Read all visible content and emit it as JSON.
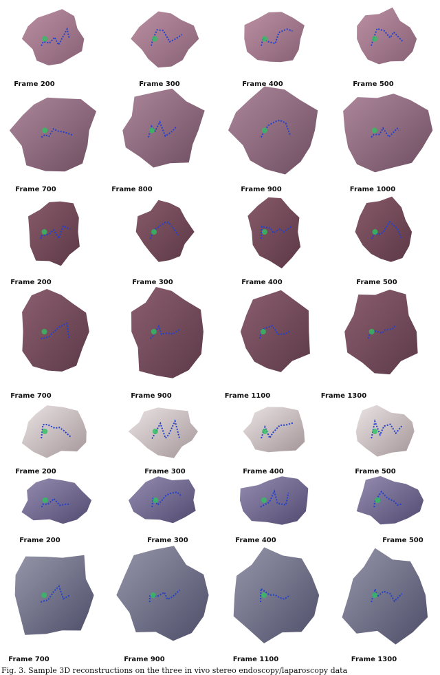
{
  "rows": [
    {
      "frames": [
        "Frame 200",
        "Frame 300",
        "Frame 400",
        "Frame 500"
      ]
    },
    {
      "frames": [
        "Frame 700",
        "Frame 800",
        "Frame 900",
        "Frame 1000"
      ]
    },
    {
      "frames": [
        "Frame 200",
        "Frame 300",
        "Frame 400",
        "Frame 500"
      ]
    },
    {
      "frames": [
        "Frame 700",
        "Frame 900",
        "Frame 1100",
        "Frame 1300"
      ]
    },
    {
      "frames": [
        "Frame 200",
        "Frame 300",
        "Frame 400",
        "Frame 500"
      ]
    },
    {
      "frames": [
        "Frame 200",
        "Frame 300",
        "Frame 400",
        "Frame 500"
      ]
    },
    {
      "frames": [
        "Frame 700",
        "Frame 900",
        "Frame 1100",
        "Frame 1300"
      ]
    }
  ],
  "caption": "Fig. 3. Sample 3D reconstructions on the three in vivo stereo endoscopy/laparoscopy data"
}
